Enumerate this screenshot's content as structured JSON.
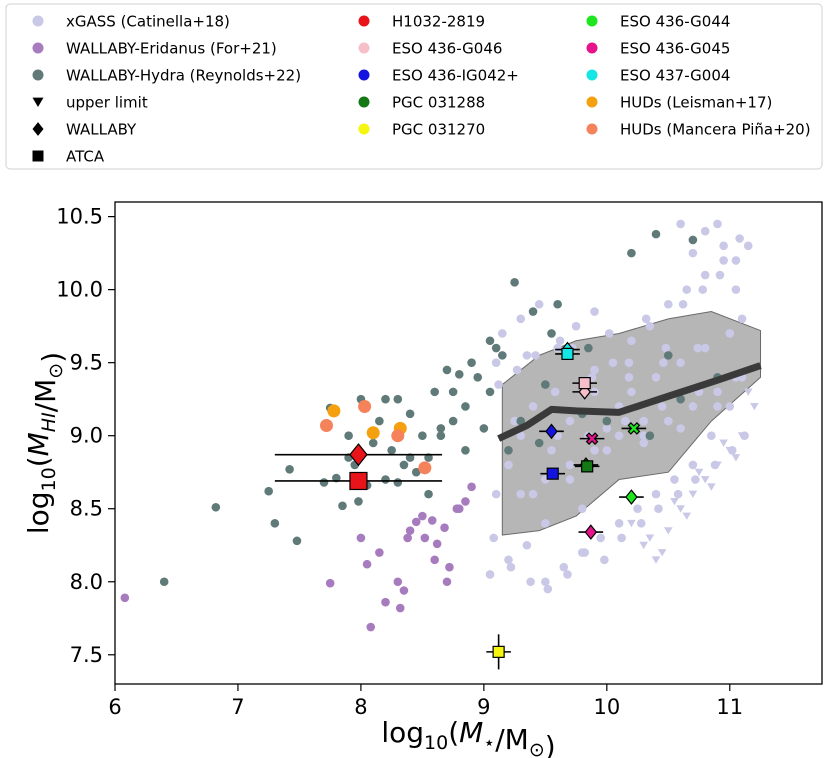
{
  "chart_data": {
    "type": "scatter",
    "xlabel": "log10(M⋆/M⊙)",
    "ylabel": "log10(M_HI/M⊙)",
    "xlim": [
      6.0,
      11.75
    ],
    "ylim": [
      7.3,
      10.6
    ],
    "x_ticks": [
      "6",
      "7",
      "8",
      "9",
      "10",
      "11"
    ],
    "y_ticks": [
      "7.5",
      "8.0",
      "8.5",
      "9.0",
      "9.5",
      "10.0",
      "10.5"
    ],
    "grid": false,
    "legend_position": "top",
    "legend": [
      {
        "label": "xGASS (Catinella+18)",
        "marker": "circle",
        "color": "#c9c8e6"
      },
      {
        "label": "WALLABY-Eridanus (For+21)",
        "marker": "circle",
        "color": "#a77cbf"
      },
      {
        "label": "WALLABY-Hydra (Reynolds+22)",
        "marker": "circle",
        "color": "#5f7a78"
      },
      {
        "label": "upper limit",
        "marker": "triangle-down",
        "color": "#000000"
      },
      {
        "label": "WALLABY",
        "marker": "diamond",
        "color": "#000000"
      },
      {
        "label": "ATCA",
        "marker": "square",
        "color": "#000000"
      },
      {
        "label": "H1032-2819",
        "marker": "circle",
        "color": "#e8141a"
      },
      {
        "label": "ESO 436-G046",
        "marker": "circle",
        "color": "#f7bfc8"
      },
      {
        "label": "ESO 436-IG042+",
        "marker": "circle",
        "color": "#1414e0"
      },
      {
        "label": "PGC 031288",
        "marker": "circle",
        "color": "#147814"
      },
      {
        "label": "PGC 031270",
        "marker": "circle",
        "color": "#f5f50f"
      },
      {
        "label": "ESO 436-G044",
        "marker": "circle",
        "color": "#1ee61e"
      },
      {
        "label": "ESO 436-G045",
        "marker": "circle",
        "color": "#e6148c"
      },
      {
        "label": "ESO 437-G004",
        "marker": "circle",
        "color": "#14e6e6"
      },
      {
        "label": "HUDs (Leisman+17)",
        "marker": "circle",
        "color": "#f5a00f"
      },
      {
        "label": "HUDs (Mancera Piña+20)",
        "marker": "circle",
        "color": "#f5825a"
      }
    ],
    "series": [
      {
        "name": "xGASS (Catinella+18)",
        "color": "#c9c8e6",
        "marker": "circle",
        "approximate": true,
        "x": [
          9.05,
          9.12,
          9.2,
          9.27,
          9.35,
          9.42,
          9.5,
          9.58,
          9.65,
          9.72,
          9.8,
          9.88,
          9.95,
          10.02,
          10.1,
          10.18,
          10.25,
          10.32,
          10.4,
          10.48,
          10.55,
          10.62,
          10.7,
          10.78,
          10.85,
          10.92,
          11.0,
          11.05,
          11.1,
          11.15,
          9.1,
          9.2,
          9.3,
          9.4,
          9.5,
          9.6,
          9.7,
          9.8,
          9.9,
          10.0,
          10.1,
          10.2,
          10.3,
          10.4,
          10.5,
          10.6,
          10.7,
          10.8,
          10.9,
          11.0,
          11.1,
          9.15,
          9.3,
          9.45,
          9.6,
          9.75,
          9.9,
          10.05,
          10.2,
          10.35,
          10.5,
          10.65,
          10.8,
          10.95,
          11.08,
          9.08,
          9.22,
          9.38,
          9.52,
          9.68,
          9.82,
          9.98,
          10.12,
          10.28,
          10.42,
          10.58,
          10.72,
          10.88,
          11.02,
          11.12,
          9.25,
          9.55,
          9.85,
          10.15,
          10.45,
          10.75,
          11.05,
          9.4,
          9.7,
          10.0,
          10.3,
          10.6,
          10.9,
          9.1,
          9.35,
          9.62,
          9.9,
          10.18,
          10.46,
          10.74,
          11.0,
          10.6,
          10.8,
          10.95,
          11.05,
          10.7,
          10.9,
          9.3,
          9.5,
          9.7,
          9.9,
          10.1,
          10.3
        ],
        "y": [
          8.05,
          9.35,
          8.15,
          9.45,
          8.25,
          9.55,
          8.0,
          9.3,
          8.1,
          9.6,
          8.2,
          9.4,
          8.3,
          9.7,
          8.4,
          9.5,
          8.5,
          9.8,
          8.6,
          9.6,
          8.7,
          9.9,
          8.8,
          10.0,
          9.0,
          10.1,
          9.2,
          10.2,
          9.4,
          10.3,
          8.6,
          8.8,
          9.0,
          9.2,
          8.4,
          9.0,
          9.1,
          8.5,
          9.3,
          9.05,
          9.2,
          9.3,
          9.0,
          9.4,
          9.1,
          9.5,
          9.2,
          9.6,
          9.3,
          9.7,
          9.8,
          9.7,
          9.8,
          9.9,
          9.6,
          9.75,
          9.85,
          9.5,
          9.65,
          9.75,
          9.9,
          10.0,
          10.1,
          10.2,
          10.35,
          8.3,
          8.1,
          8.0,
          7.95,
          8.05,
          8.2,
          8.15,
          8.3,
          8.4,
          8.5,
          8.6,
          8.7,
          8.8,
          8.9,
          9.0,
          9.1,
          8.9,
          9.0,
          9.1,
          9.2,
          9.3,
          9.4,
          8.6,
          8.7,
          8.9,
          8.95,
          9.05,
          9.2,
          9.5,
          9.55,
          9.65,
          9.45,
          9.4,
          9.5,
          9.6,
          9.7,
          10.45,
          10.4,
          10.3,
          10.0,
          10.25,
          10.45,
          8.6,
          8.7,
          8.8,
          8.9,
          9.0,
          9.1
        ]
      },
      {
        "name": "upper limit",
        "color": "#c9c8e6",
        "marker": "triangle-down",
        "approximate": true,
        "x": [
          10.2,
          10.35,
          10.5,
          10.6,
          10.7,
          10.8,
          10.9,
          11.0,
          11.1,
          11.2,
          10.45,
          10.65,
          10.85,
          11.05,
          10.3,
          10.55,
          10.75,
          10.95,
          11.15,
          10.4
        ],
        "y": [
          8.4,
          8.3,
          8.35,
          8.5,
          8.6,
          8.7,
          8.8,
          8.9,
          9.0,
          9.2,
          8.2,
          8.45,
          8.65,
          8.85,
          8.25,
          8.55,
          8.75,
          8.95,
          9.3,
          8.15
        ]
      },
      {
        "name": "WALLABY-Eridanus (For+21)",
        "color": "#a77cbf",
        "marker": "circle",
        "approximate": true,
        "x": [
          6.08,
          7.75,
          8.05,
          8.08,
          8.2,
          8.32,
          8.35,
          8.38,
          8.45,
          8.52,
          8.58,
          8.62,
          8.68,
          8.72,
          8.78,
          8.85,
          8.9,
          8.0,
          8.3,
          8.6,
          8.8,
          8.15,
          8.4,
          8.5,
          8.7
        ],
        "y": [
          7.89,
          7.99,
          8.12,
          7.69,
          7.86,
          7.82,
          7.94,
          8.3,
          8.41,
          8.3,
          8.42,
          8.26,
          8.37,
          8.1,
          8.5,
          8.55,
          8.65,
          8.3,
          8.0,
          8.15,
          8.5,
          8.2,
          8.35,
          8.45,
          8.0
        ]
      },
      {
        "name": "WALLABY-Hydra (Reynolds+22)",
        "color": "#5f7a78",
        "marker": "circle",
        "approximate": true,
        "x": [
          6.4,
          6.82,
          7.25,
          7.3,
          7.42,
          7.48,
          7.7,
          7.75,
          7.8,
          7.85,
          7.9,
          7.95,
          7.98,
          8.05,
          8.1,
          8.15,
          8.2,
          8.25,
          8.3,
          8.35,
          8.4,
          8.45,
          8.5,
          8.55,
          8.6,
          8.65,
          8.7,
          8.75,
          8.8,
          8.85,
          8.9,
          8.95,
          9.0,
          9.05,
          9.1,
          9.15,
          9.2,
          9.3,
          9.4,
          9.5,
          9.6,
          9.8,
          10.0,
          10.2,
          10.4,
          10.5,
          10.7,
          10.9,
          7.9,
          8.0,
          8.3,
          8.55,
          8.75,
          8.85,
          9.25,
          9.55,
          9.85,
          10.35,
          10.6,
          8.2,
          8.4,
          8.65,
          9.05,
          9.45
        ],
        "y": [
          8.0,
          8.51,
          8.62,
          8.4,
          8.77,
          8.28,
          8.68,
          9.19,
          8.71,
          8.52,
          8.85,
          8.8,
          8.55,
          8.66,
          8.95,
          9.1,
          8.7,
          8.9,
          8.68,
          8.8,
          9.15,
          8.75,
          9.0,
          8.85,
          9.3,
          9.05,
          9.45,
          9.3,
          9.42,
          9.2,
          9.5,
          9.4,
          9.05,
          9.3,
          9.6,
          9.55,
          8.9,
          9.1,
          9.85,
          9.35,
          9.9,
          9.15,
          9.1,
          10.25,
          10.38,
          9.55,
          10.34,
          9.4,
          9.0,
          9.25,
          9.25,
          8.6,
          9.1,
          8.9,
          10.05,
          9.7,
          9.6,
          9.0,
          9.25,
          9.25,
          8.85,
          9.0,
          9.65,
          8.95
        ]
      },
      {
        "name": "HUDs (Leisman+17)",
        "color": "#f5a00f",
        "marker": "circle",
        "x": [
          7.78,
          8.1,
          8.32
        ],
        "y": [
          9.17,
          9.02,
          9.05
        ]
      },
      {
        "name": "HUDs (Mancera Piña+20)",
        "color": "#f5825a",
        "marker": "circle",
        "x": [
          7.72,
          8.03,
          8.3,
          8.52
        ],
        "y": [
          9.07,
          9.2,
          9.0,
          8.78
        ]
      },
      {
        "name": "median",
        "color": "#3a3a3a",
        "marker": "line",
        "x": [
          9.12,
          9.35,
          9.55,
          9.75,
          10.1,
          10.5,
          10.9,
          11.25
        ],
        "y": [
          8.98,
          9.07,
          9.18,
          9.17,
          9.16,
          9.27,
          9.38,
          9.48
        ]
      }
    ],
    "band": {
      "name": "scatter band",
      "color": "#7a7a7a",
      "x": [
        9.15,
        9.45,
        9.75,
        10.1,
        10.5,
        10.85,
        11.25,
        11.25,
        10.85,
        10.5,
        10.1,
        9.75,
        9.45,
        9.15
      ],
      "y": [
        9.35,
        9.55,
        9.65,
        9.7,
        9.8,
        9.85,
        9.72,
        9.4,
        9.1,
        8.75,
        8.7,
        8.45,
        8.35,
        8.32
      ]
    },
    "galaxies": [
      {
        "name": "H1032-2819 (WALLABY)",
        "marker": "diamond",
        "color": "#e8141a",
        "x": 7.98,
        "y": 8.87,
        "xerr": 0.68,
        "yerr": 0.0,
        "size": "large"
      },
      {
        "name": "H1032-2819 (ATCA)",
        "marker": "square",
        "color": "#e8141a",
        "x": 7.98,
        "y": 8.69,
        "xerr": 0.68,
        "yerr": 0.0,
        "size": "large"
      },
      {
        "name": "ESO 436-G046 (WALLABY)",
        "marker": "diamond",
        "color": "#f7bfc8",
        "x": 9.82,
        "y": 9.3,
        "xerr": 0.1,
        "yerr": 0.02
      },
      {
        "name": "ESO 436-G046 (ATCA)",
        "marker": "square",
        "color": "#f7bfc8",
        "x": 9.82,
        "y": 9.36,
        "xerr": 0.1,
        "yerr": 0.02
      },
      {
        "name": "ESO 436-IG042+ (WALLABY)",
        "marker": "diamond",
        "color": "#1414e0",
        "x": 9.55,
        "y": 9.03,
        "xerr": 0.1,
        "yerr": 0.02
      },
      {
        "name": "ESO 436-IG042+ (ATCA)",
        "marker": "square",
        "color": "#1414e0",
        "x": 9.56,
        "y": 8.74,
        "xerr": 0.1,
        "yerr": 0.02
      },
      {
        "name": "PGC 031288 (WALLABY)",
        "marker": "diamond",
        "color": "#147814",
        "x": 9.83,
        "y": 8.8,
        "xerr": 0.1,
        "yerr": 0.02
      },
      {
        "name": "PGC 031288 (ATCA)",
        "marker": "square",
        "color": "#147814",
        "x": 9.84,
        "y": 8.79,
        "xerr": 0.1,
        "yerr": 0.02
      },
      {
        "name": "PGC 031270 (ATCA)",
        "marker": "square",
        "color": "#f5f50f",
        "x": 9.12,
        "y": 7.52,
        "xerr": 0.1,
        "yerr": 0.12
      },
      {
        "name": "ESO 436-G044 (WALLABY)",
        "marker": "diamond",
        "color": "#1ee61e",
        "x": 10.2,
        "y": 8.58,
        "xerr": 0.1,
        "yerr": 0.02
      },
      {
        "name": "ESO 436-G044 (ATCA)",
        "marker": "x",
        "color": "#1ee61e",
        "x": 10.22,
        "y": 9.05,
        "xerr": 0.1,
        "yerr": 0.02
      },
      {
        "name": "ESO 436-G045 (WALLABY)",
        "marker": "diamond",
        "color": "#e6148c",
        "x": 9.87,
        "y": 8.34,
        "xerr": 0.1,
        "yerr": 0.02
      },
      {
        "name": "ESO 436-G045 (ATCA)",
        "marker": "x",
        "color": "#e6148c",
        "x": 9.88,
        "y": 8.98,
        "xerr": 0.1,
        "yerr": 0.02
      },
      {
        "name": "ESO 437-G004 (WALLABY)",
        "marker": "diamond",
        "color": "#14e6e6",
        "x": 9.68,
        "y": 9.59,
        "xerr": 0.1,
        "yerr": 0.02
      },
      {
        "name": "ESO 437-G004 (ATCA)",
        "marker": "square",
        "color": "#14e6e6",
        "x": 9.68,
        "y": 9.56,
        "xerr": 0.1,
        "yerr": 0.02
      }
    ]
  }
}
